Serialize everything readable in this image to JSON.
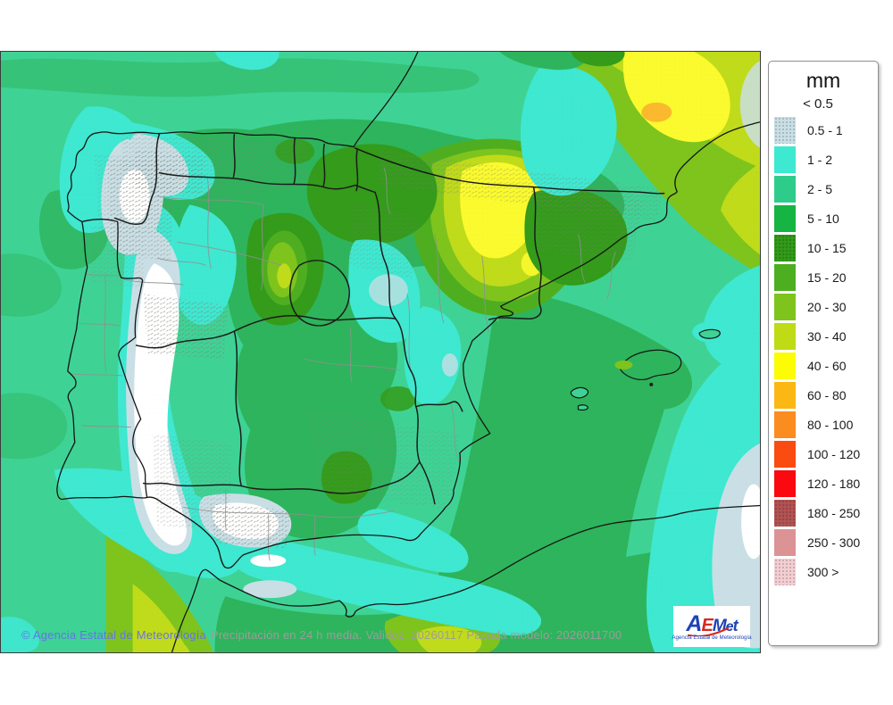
{
  "legend": {
    "title": "mm",
    "entries": [
      {
        "label": "< 0.5",
        "color": null,
        "speckle": false
      },
      {
        "label": "0.5 - 1",
        "color": "#c9dfe5",
        "speckle": true
      },
      {
        "label": "1 - 2",
        "color": "#3de9d1",
        "speckle": false
      },
      {
        "label": "2 - 5",
        "color": "#2ecc8b",
        "speckle": false
      },
      {
        "label": "5 - 10",
        "color": "#16b442",
        "speckle": false
      },
      {
        "label": "10 - 15",
        "color": "#319a18",
        "speckle": true
      },
      {
        "label": "15 - 20",
        "color": "#4dae1f",
        "speckle": false
      },
      {
        "label": "20 - 30",
        "color": "#7ec41d",
        "speckle": false
      },
      {
        "label": "30 - 40",
        "color": "#bfdb16",
        "speckle": false
      },
      {
        "label": "40 - 60",
        "color": "#fcfc05",
        "speckle": false
      },
      {
        "label": "60 - 80",
        "color": "#fbb713",
        "speckle": false
      },
      {
        "label": "80 - 100",
        "color": "#fb8c20",
        "speckle": false
      },
      {
        "label": "100 - 120",
        "color": "#fa4b11",
        "speckle": false
      },
      {
        "label": "120 - 180",
        "color": "#fa0a10",
        "speckle": false
      },
      {
        "label": "180 - 250",
        "color": "#b25252",
        "speckle": true
      },
      {
        "label": "250 - 300",
        "color": "#dc9396",
        "speckle": false
      },
      {
        "label": "300 >",
        "color": "#f3ced3",
        "speckle": true
      }
    ]
  },
  "map": {
    "credit": "© Agencia Estatal de Meteorología",
    "caption": "Precipitación en 24 h media. Validez: 20260117 Pasada modelo: 2026011700",
    "credit_color": "#6673e8",
    "caption_color": "#9c9c9c"
  },
  "logo": {
    "letters": [
      {
        "text": "A",
        "color": "#1e43b5",
        "size": 25
      },
      {
        "text": "E",
        "color": "#d7281f",
        "size": 20
      },
      {
        "text": "M",
        "color": "#1e43b5",
        "size": 19
      },
      {
        "text": "e",
        "color": "#1e43b5",
        "size": 16
      },
      {
        "text": "t",
        "color": "#1e43b5",
        "size": 18
      }
    ],
    "swoosh_color": "#d7281f",
    "subtitle": "Agencia Estatal de Meteorología",
    "subtitle_color": "#1e43b5"
  },
  "palette": {
    "p0": "#ffffff",
    "p1": "#c9dfe5",
    "p2": "#3fe8d0",
    "p3": "#3ed395",
    "p4": "#2eb45c",
    "p5": "#349b1b",
    "p6": "#4fae20",
    "p7": "#7ec41d",
    "p8": "#c0db1a",
    "p9": "#fafa2e",
    "p10": "#fbb92d",
    "coast": "#141414",
    "region_border": "#1b1b1b",
    "province_border": "#909090"
  }
}
